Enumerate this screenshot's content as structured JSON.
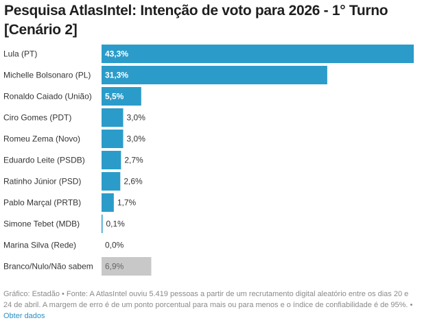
{
  "chart_data": {
    "type": "bar",
    "orientation": "horizontal",
    "title": "Pesquisa AtlasIntel: Intenção de voto para 2026 - 1° Turno [Cenário 2]",
    "xlabel": "",
    "ylabel": "",
    "xlim": [
      0,
      43.3
    ],
    "grid": false,
    "categories": [
      "Lula (PT)",
      "Michelle Bolsonaro (PL)",
      "Ronaldo Caiado (União)",
      "Ciro Gomes (PDT)",
      "Romeu Zema (Novo)",
      "Eduardo Leite (PSDB)",
      "Ratinho Júnior (PSD)",
      "Pablo Marçal (PRTB)",
      "Simone Tebet (MDB)",
      "Marina Silva (Rede)",
      "Branco/Nulo/Não sabem"
    ],
    "values": [
      43.3,
      31.3,
      5.5,
      3.0,
      3.0,
      2.7,
      2.6,
      1.7,
      0.1,
      0.0,
      6.9
    ],
    "value_labels": [
      "43,3%",
      "31,3%",
      "5,5%",
      "3,0%",
      "3,0%",
      "2,7%",
      "2,6%",
      "1,7%",
      "0,1%",
      "0,0%",
      "6,9%"
    ],
    "colors": {
      "candidate": "#2b9cca",
      "other": "#c8c8c8",
      "label_inside": "#ffffff",
      "label_outside": "#333333",
      "label_other": "#666666"
    },
    "special_categories": [
      "Branco/Nulo/Não sabem"
    ]
  },
  "header": {
    "title": "Pesquisa AtlasIntel: Intenção de voto para 2026 - 1° Turno [Cenário 2]"
  },
  "footer": {
    "credit": "Gráfico: Estadão",
    "separator": " • ",
    "source": "Fonte: A AtlasIntel ouviu 5.419 pessoas a partir de um recrutamento digital aleatório entre os dias 20 e 24 de abril. A margem de erro é de um ponto porcentual para mais ou para menos e o índice de confiabilidade é de 95%.",
    "link_label": "Obter dados"
  }
}
